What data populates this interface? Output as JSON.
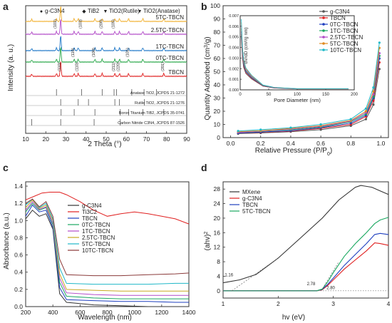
{
  "chart_data": [
    {
      "panel": "a",
      "type": "line",
      "xlabel": "2 Theta  (°)",
      "ylabel": "Intensity (a. u.)",
      "xlim": [
        10,
        90
      ],
      "xticks": [
        10,
        20,
        30,
        40,
        50,
        60,
        70,
        80,
        90
      ],
      "legend": [
        "g-C3N4",
        "TiB2",
        "TiO2(Rutile)",
        "TiO2(Anatase)"
      ],
      "legend_colors": [
        "#1f3fbf",
        "#111111",
        "#2aa84a",
        "#e03030"
      ],
      "series": [
        {
          "name": "5TC-TBCN",
          "color": "#f2b233"
        },
        {
          "name": "2.5TC-TBCN",
          "color": "#b24bc8"
        },
        {
          "name": "1TC-TBCN",
          "color": "#1f78c8"
        },
        {
          "name": "0TC-TBCN",
          "color": "#2aa84a"
        },
        {
          "name": "TBCN",
          "color": "#e02020"
        }
      ],
      "peak_labels": [
        "(101)",
        "(103)",
        "(200)",
        "(105)",
        "(110)",
        "(100)",
        "(101)",
        "(110)",
        "(211)",
        "(220)",
        "(201)",
        "(110)"
      ],
      "references": [
        {
          "name": "Anatase TiO2, JCPDS 21-1272",
          "peaks": [
            25.3,
            37.8,
            48.0,
            53.9,
            55.1,
            62.7,
            68.8,
            75.0
          ]
        },
        {
          "name": "Rutile TiO2, JCPDS 21-1276",
          "peaks": [
            27.4,
            36.1,
            41.2,
            54.3,
            56.6,
            69.0
          ]
        },
        {
          "name": "Boron Titanium TiB2, JCPDS 35-0741",
          "peaks": [
            27.6,
            34.1,
            44.4,
            57.0,
            61.1,
            68.2,
            78.6
          ]
        },
        {
          "name": "Carbon Nitride C3N4, JCPDS 87-1526",
          "peaks": [
            13.0,
            27.4,
            44.0,
            57.0
          ]
        }
      ]
    },
    {
      "panel": "b",
      "type": "line",
      "xlabel": "Relative Pressure (P/P0)",
      "ylabel": "Quantity Adsorbed (cm3/g)",
      "xlim": [
        -0.05,
        1.05
      ],
      "ylim": [
        0,
        100
      ],
      "xticks": [
        0.0,
        0.2,
        0.4,
        0.6,
        0.8,
        1.0
      ],
      "yticks": [
        0,
        10,
        20,
        30,
        40,
        50,
        60,
        70,
        80,
        90,
        100
      ],
      "series": [
        {
          "name": "g-C3N4",
          "color": "#555555",
          "x": [
            0.05,
            0.2,
            0.4,
            0.6,
            0.8,
            0.9,
            0.95,
            0.99
          ],
          "y": [
            3,
            3.5,
            4.5,
            6,
            9,
            14,
            25,
            52
          ]
        },
        {
          "name": "TBCN",
          "color": "#e02020",
          "x": [
            0.05,
            0.2,
            0.4,
            0.6,
            0.8,
            0.9,
            0.95,
            0.99
          ],
          "y": [
            3.5,
            4,
            5,
            7,
            10,
            16,
            28,
            57
          ]
        },
        {
          "name": "0TC-TBCN",
          "color": "#1f3fbf",
          "x": [
            0.05,
            0.2,
            0.4,
            0.6,
            0.8,
            0.9,
            0.95,
            0.99
          ],
          "y": [
            3.5,
            4.2,
            5.3,
            7.5,
            11,
            17,
            30,
            60
          ]
        },
        {
          "name": "1TC-TBCN",
          "color": "#1aa860",
          "x": [
            0.05,
            0.2,
            0.4,
            0.6,
            0.8,
            0.9,
            0.95,
            0.99
          ],
          "y": [
            4,
            4.8,
            6,
            8,
            12,
            18,
            31,
            62
          ]
        },
        {
          "name": "2.5TC-TBCN",
          "color": "#b24bc8",
          "x": [
            0.05,
            0.2,
            0.4,
            0.6,
            0.8,
            0.9,
            0.95,
            0.99
          ],
          "y": [
            4,
            5,
            6.5,
            8.5,
            12.5,
            19,
            33,
            64
          ]
        },
        {
          "name": "5TC-TBCN",
          "color": "#e08a20",
          "x": [
            0.05,
            0.2,
            0.4,
            0.6,
            0.8,
            0.9,
            0.95,
            0.99
          ],
          "y": [
            4.5,
            5.2,
            7,
            9,
            13,
            20,
            35,
            68
          ]
        },
        {
          "name": "10TC-TBCN",
          "color": "#20b8c8",
          "x": [
            0.05,
            0.2,
            0.4,
            0.6,
            0.8,
            0.9,
            0.95,
            0.99
          ],
          "y": [
            5,
            6,
            7.5,
            10,
            14,
            22,
            38,
            72
          ]
        }
      ],
      "inset": {
        "xlabel": "Pore Diameter (nm)",
        "ylabel": "dV/dD (cm3/g.nm)",
        "xlim": [
          0,
          200
        ],
        "ylim": [
          0,
          0.007
        ],
        "xticks": [
          0,
          50,
          100,
          150,
          200
        ],
        "yticks": [
          0.0,
          0.001,
          0.002,
          0.003,
          0.004,
          0.005,
          0.006,
          0.007
        ],
        "x": [
          2,
          4,
          6,
          10,
          20,
          40,
          60,
          100,
          150,
          190
        ],
        "y": [
          0.0058,
          0.0035,
          0.0025,
          0.0018,
          0.0012,
          0.0004,
          0.0002,
          0.0001,
          0.0001,
          0.0001
        ]
      }
    },
    {
      "panel": "c",
      "type": "line",
      "xlabel": "Wavelength (nm)",
      "ylabel": "Absorbance (a.u.)",
      "xlim": [
        200,
        1400
      ],
      "ylim": [
        0,
        1.45
      ],
      "xticks": [
        200,
        400,
        600,
        800,
        1000,
        1200,
        1400
      ],
      "yticks": [
        0.0,
        0.2,
        0.4,
        0.6,
        0.8,
        1.0,
        1.2,
        1.4
      ],
      "series": [
        {
          "name": "g-C3N4",
          "color": "#333333",
          "x": [
            200,
            250,
            300,
            350,
            400,
            450,
            500,
            700,
            900,
            1100,
            1300,
            1400
          ],
          "y": [
            1.02,
            1.12,
            1.05,
            1.08,
            0.9,
            0.15,
            0.05,
            0.02,
            0.01,
            0.0,
            0.0,
            0.0
          ]
        },
        {
          "name": "Ti3C2",
          "color": "#e02020",
          "x": [
            200,
            260,
            320,
            380,
            450,
            500,
            600,
            700,
            800,
            900,
            1000,
            1100,
            1200,
            1300,
            1400
          ],
          "y": [
            1.24,
            1.28,
            1.32,
            1.33,
            1.33,
            1.3,
            1.22,
            1.12,
            1.05,
            1.08,
            1.1,
            1.08,
            1.05,
            1.02,
            0.96
          ]
        },
        {
          "name": "TBCN",
          "color": "#1f3fbf",
          "x": [
            200,
            250,
            300,
            350,
            400,
            450,
            500,
            700,
            900,
            1100,
            1300,
            1400
          ],
          "y": [
            1.05,
            1.18,
            1.1,
            1.12,
            0.92,
            0.22,
            0.08,
            0.07,
            0.06,
            0.06,
            0.05,
            0.05
          ]
        },
        {
          "name": "0TC-TBCN",
          "color": "#1aa860",
          "x": [
            200,
            250,
            300,
            350,
            400,
            450,
            500,
            700,
            900,
            1100,
            1300,
            1400
          ],
          "y": [
            1.1,
            1.2,
            1.12,
            1.15,
            0.95,
            0.28,
            0.12,
            0.1,
            0.09,
            0.09,
            0.09,
            0.09
          ]
        },
        {
          "name": "1TC-TBCN",
          "color": "#b24bc8",
          "x": [
            200,
            250,
            300,
            350,
            400,
            450,
            500,
            700,
            900,
            1100,
            1300,
            1400
          ],
          "y": [
            1.12,
            1.22,
            1.13,
            1.16,
            0.97,
            0.33,
            0.16,
            0.14,
            0.13,
            0.13,
            0.13,
            0.13
          ]
        },
        {
          "name": "2.5TC-TBCN",
          "color": "#c8a820",
          "x": [
            200,
            250,
            300,
            350,
            400,
            450,
            500,
            700,
            900,
            1100,
            1300,
            1400
          ],
          "y": [
            1.15,
            1.24,
            1.14,
            1.18,
            1.0,
            0.38,
            0.2,
            0.19,
            0.18,
            0.18,
            0.18,
            0.18
          ]
        },
        {
          "name": "5TC-TBCN",
          "color": "#20b8c8",
          "x": [
            200,
            250,
            300,
            350,
            400,
            450,
            500,
            700,
            900,
            1100,
            1300,
            1400
          ],
          "y": [
            1.18,
            1.25,
            1.15,
            1.2,
            1.02,
            0.45,
            0.27,
            0.26,
            0.26,
            0.26,
            0.27,
            0.27
          ]
        },
        {
          "name": "10TC-TBCN",
          "color": "#8a3a3a",
          "x": [
            200,
            250,
            300,
            350,
            400,
            450,
            500,
            700,
            900,
            1100,
            1300,
            1400
          ],
          "y": [
            1.2,
            1.25,
            1.16,
            1.22,
            1.05,
            0.55,
            0.37,
            0.36,
            0.36,
            0.37,
            0.38,
            0.39
          ]
        }
      ]
    },
    {
      "panel": "d",
      "type": "line",
      "xlabel": "hv (eV)",
      "ylabel": "(ahv)2",
      "xlim": [
        1,
        4
      ],
      "ylim": [
        -2,
        30
      ],
      "xticks": [
        1,
        2,
        3,
        4
      ],
      "yticks": [
        0,
        4,
        8,
        12,
        16,
        20,
        24,
        28
      ],
      "annotations": [
        "1.16",
        "2.78",
        "2.80"
      ],
      "series": [
        {
          "name": "MXene",
          "color": "#333333",
          "x": [
            1.0,
            1.3,
            1.6,
            2.0,
            2.4,
            2.8,
            3.1,
            3.4,
            3.5,
            3.7,
            3.85,
            4.0
          ],
          "y": [
            2.2,
            3,
            4.5,
            9,
            14.5,
            20,
            25,
            28.5,
            29,
            28.5,
            27.5,
            26.5
          ]
        },
        {
          "name": "g-C3N4",
          "color": "#e02020",
          "x": [
            1.0,
            2.0,
            2.7,
            2.8,
            2.9,
            3.0,
            3.2,
            3.4,
            3.6,
            3.75,
            3.85,
            4.0
          ],
          "y": [
            0,
            0,
            0,
            0.3,
            1.5,
            3,
            6,
            8.5,
            11,
            13.2,
            13,
            12.5
          ]
        },
        {
          "name": "TBCN",
          "color": "#1f3fbf",
          "x": [
            1.0,
            2.0,
            2.7,
            2.8,
            2.9,
            3.0,
            3.2,
            3.4,
            3.6,
            3.75,
            3.85,
            4.0
          ],
          "y": [
            0,
            0,
            0,
            0.4,
            1.8,
            3.5,
            7,
            10,
            13,
            15.5,
            15.8,
            15.5
          ]
        },
        {
          "name": "5TC-TBCN",
          "color": "#1aa860",
          "x": [
            1.0,
            2.0,
            2.7,
            2.8,
            2.9,
            3.0,
            3.2,
            3.4,
            3.6,
            3.75,
            3.85,
            4.0
          ],
          "y": [
            0,
            0,
            0,
            0.5,
            2.5,
            5,
            9.5,
            13,
            16,
            18.5,
            19.5,
            20.2
          ]
        }
      ]
    }
  ],
  "labels": {
    "panel_a": "a",
    "panel_b": "b",
    "panel_c": "c",
    "panel_d": "d",
    "a_xlabel": "2 Theta  (°)",
    "a_ylabel": "Intensity (a. u.)",
    "b_xlabel": "Relative Pressure (P/P",
    "b_ylabel": "Quantity Adsorbed (cm",
    "c_xlabel": "Wavelength (nm)",
    "c_ylabel": "Absorbance (a.u.)",
    "d_xlabel": "hv (eV)",
    "d_ylabel": "(ahv)",
    "b_inset_xlabel": "Pore Diameter (nm)",
    "b_inset_ylabel": "dV/dD (cm³/g nm)"
  }
}
